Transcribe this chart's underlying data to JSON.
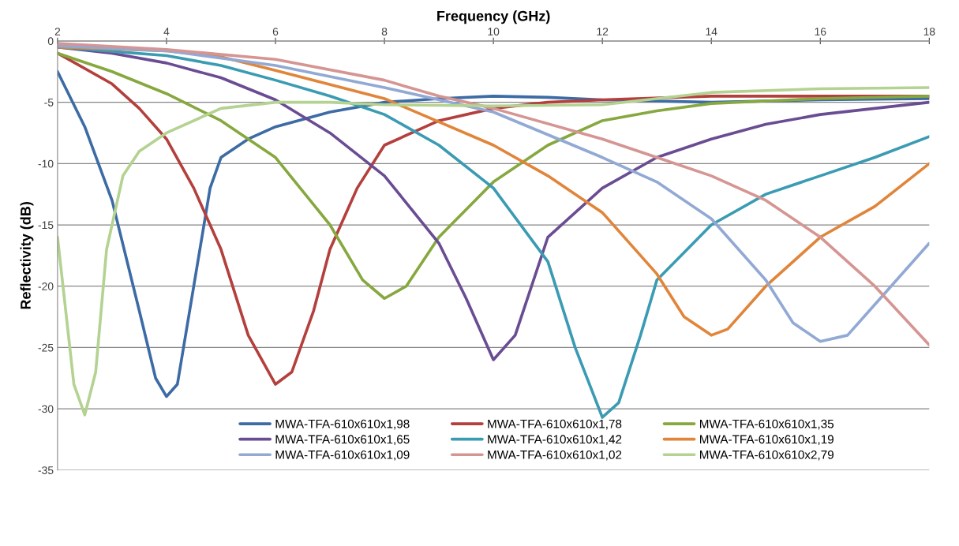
{
  "chart_data": {
    "type": "line",
    "xlabel": "Frequency (GHz)",
    "ylabel": "Reflectivity (dB)",
    "xlim": [
      2,
      18
    ],
    "xticks": [
      2,
      4,
      6,
      8,
      10,
      12,
      14,
      16,
      18
    ],
    "ylim": [
      -35,
      0
    ],
    "yticks": [
      -35,
      -30,
      -25,
      -20,
      -15,
      -10,
      -5,
      0
    ],
    "grid": "y",
    "legend": "bottom",
    "marker": "none",
    "line_style": "solid",
    "series": [
      {
        "name": "MWA-TFA-610x610x1,98",
        "color": "#3c6ba5",
        "x": [
          2,
          2.5,
          3,
          3.5,
          3.8,
          4,
          4.2,
          4.5,
          4.8,
          5,
          5.5,
          6,
          7,
          8,
          9,
          10,
          11,
          12,
          13,
          14,
          16,
          18
        ],
        "values": [
          -2.5,
          -7,
          -13,
          -22,
          -27.5,
          -29,
          -28,
          -20,
          -12,
          -9.5,
          -8,
          -7,
          -5.8,
          -5,
          -4.7,
          -4.5,
          -4.6,
          -4.8,
          -4.9,
          -5,
          -4.8,
          -4.7
        ]
      },
      {
        "name": "MWA-TFA-610x610x1,78",
        "color": "#b3403d",
        "x": [
          2,
          3,
          3.5,
          4,
          4.5,
          5,
          5.5,
          6,
          6.3,
          6.7,
          7,
          7.5,
          8,
          9,
          10,
          11,
          12,
          14,
          16,
          18
        ],
        "values": [
          -1,
          -3.5,
          -5.5,
          -8,
          -12,
          -17,
          -24,
          -28,
          -27,
          -22,
          -17,
          -12,
          -8.5,
          -6.5,
          -5.5,
          -5,
          -4.8,
          -4.5,
          -4.5,
          -4.5
        ]
      },
      {
        "name": "MWA-TFA-610x610x1,35",
        "color": "#86a83f",
        "x": [
          2,
          3,
          4,
          5,
          6,
          7,
          7.6,
          8,
          8.4,
          9,
          10,
          11,
          12,
          13,
          14,
          15,
          16,
          18
        ],
        "values": [
          -1,
          -2.5,
          -4.3,
          -6.5,
          -9.5,
          -15,
          -19.5,
          -21,
          -20,
          -16,
          -11.5,
          -8.5,
          -6.5,
          -5.7,
          -5.1,
          -4.9,
          -4.7,
          -4.5
        ]
      },
      {
        "name": "MWA-TFA-610x610x1,65",
        "color": "#6a4c93",
        "x": [
          2,
          3,
          4,
          5,
          6,
          7,
          8,
          9,
          9.5,
          10,
          10.4,
          11,
          12,
          13,
          14,
          15,
          16,
          17,
          18
        ],
        "values": [
          -0.5,
          -1,
          -1.8,
          -3,
          -4.8,
          -7.5,
          -11,
          -16.5,
          -21,
          -26,
          -24,
          -16,
          -12,
          -9.5,
          -8,
          -6.8,
          -6,
          -5.5,
          -5
        ]
      },
      {
        "name": "MWA-TFA-610x610x1,42",
        "color": "#3a9bb3",
        "x": [
          2,
          4,
          5,
          6,
          7,
          8,
          9,
          10,
          11,
          11.5,
          12,
          12.3,
          12.7,
          13,
          14,
          15,
          16,
          17,
          18
        ],
        "values": [
          -0.5,
          -1.2,
          -2,
          -3.2,
          -4.5,
          -6,
          -8.5,
          -12,
          -18,
          -25,
          -30.7,
          -29.5,
          -24,
          -19.5,
          -15,
          -12.5,
          -11,
          -9.5,
          -7.8
        ]
      },
      {
        "name": "MWA-TFA-610x610x1,19",
        "color": "#e0853a",
        "x": [
          2,
          4,
          5,
          6,
          8,
          10,
          11,
          12,
          13,
          13.5,
          14,
          14.3,
          15,
          16,
          17,
          18
        ],
        "values": [
          -0.5,
          -0.8,
          -1.3,
          -2.4,
          -4.7,
          -8.5,
          -11,
          -14,
          -19,
          -22.5,
          -24,
          -23.5,
          -20,
          -16,
          -13.5,
          -10
        ]
      },
      {
        "name": "MWA-TFA-610x610x1,09",
        "color": "#91a9d4",
        "x": [
          2,
          4,
          6,
          8,
          10,
          12,
          13,
          14,
          15,
          15.5,
          16,
          16.5,
          17,
          18
        ],
        "values": [
          -0.4,
          -0.8,
          -2,
          -3.8,
          -5.8,
          -9.5,
          -11.5,
          -14.5,
          -19.5,
          -23,
          -24.5,
          -24,
          -21.5,
          -16.5
        ]
      },
      {
        "name": "MWA-TFA-610x610x1,02",
        "color": "#d59593",
        "x": [
          2,
          4,
          6,
          8,
          9,
          10,
          12,
          13,
          14,
          15,
          16,
          17,
          18
        ],
        "values": [
          -0.2,
          -0.7,
          -1.5,
          -3.2,
          -4.5,
          -5.5,
          -8,
          -9.5,
          -11,
          -13,
          -16,
          -20,
          -24.8
        ]
      },
      {
        "name": "MWA-TFA-610x610x2,79",
        "color": "#b4d291",
        "x": [
          2,
          2.3,
          2.5,
          2.7,
          2.9,
          3.2,
          3.5,
          4,
          5,
          6,
          7,
          8,
          10,
          12,
          14,
          16,
          18
        ],
        "values": [
          -16,
          -28,
          -30.5,
          -27,
          -17,
          -11,
          -9,
          -7.5,
          -5.5,
          -5,
          -5,
          -5.2,
          -5.3,
          -5.2,
          -4.2,
          -3.9,
          -3.8
        ]
      }
    ]
  }
}
